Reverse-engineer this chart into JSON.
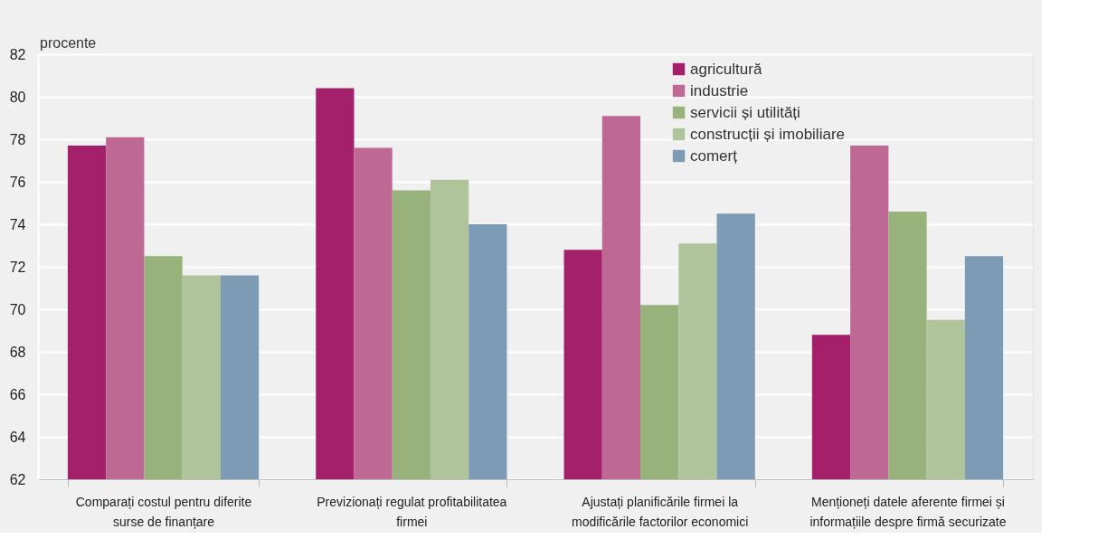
{
  "chart_data": {
    "type": "bar",
    "ylabel": "procente",
    "categories": [
      "Comparați costul pentru diferite surse de finanțare",
      "Previzionați regulat profitabilitatea firmei",
      "Ajustați planificările firmei la modificările factorilor economici",
      "Menționeți datele aferente firmei și informațiile despre firmă securizate"
    ],
    "series": [
      {
        "name": "agricultură",
        "color": "#a4206a",
        "values": [
          77.7,
          80.4,
          72.8,
          68.8
        ]
      },
      {
        "name": "industrie",
        "color": "#be6993",
        "values": [
          78.1,
          77.6,
          79.1,
          77.7
        ]
      },
      {
        "name": "servicii și utilități",
        "color": "#97b27b",
        "values": [
          72.5,
          75.6,
          70.2,
          74.6
        ]
      },
      {
        "name": "construcții și imobiliare",
        "color": "#afc49a",
        "values": [
          71.6,
          76.1,
          73.1,
          69.5
        ]
      },
      {
        "name": "comerț",
        "color": "#7d9bb4",
        "values": [
          71.6,
          74.0,
          74.5,
          72.5
        ]
      }
    ],
    "ylim": [
      62,
      82
    ],
    "yticks": [
      62,
      64,
      66,
      68,
      70,
      72,
      74,
      76,
      78,
      80,
      82
    ],
    "grid": "y",
    "legend": "top"
  }
}
